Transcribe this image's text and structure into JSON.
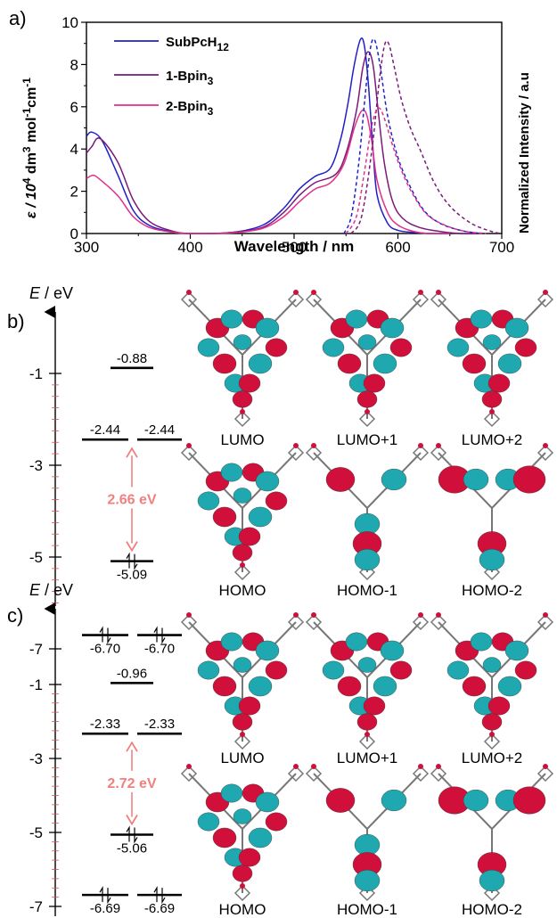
{
  "panel_a": {
    "label": "a)",
    "xlabel": "Wavelength / nm",
    "ylabel_left_pre": "ε / 10",
    "ylabel_left_exp": "4",
    "ylabel_left_mid": " dm",
    "ylabel_left_exp2": "3",
    "ylabel_left_mid2": " mol",
    "ylabel_left_exp3": "-1",
    "ylabel_left_mid3": "cm",
    "ylabel_left_exp4": "-1",
    "ylabel_right": "Normalized Intensity / a.u",
    "legend": [
      {
        "name": "SubPcH",
        "sub": "12",
        "color": "#2020c8"
      },
      {
        "name": "1-Bpin",
        "sub": "3",
        "color": "#7a1a7a"
      },
      {
        "name": "2-Bpin",
        "sub": "3",
        "color": "#e0308a"
      }
    ]
  },
  "chart_data": {
    "type": "line",
    "xlabel": "Wavelength / nm",
    "xlim": [
      300,
      700
    ],
    "ylim": [
      0,
      10
    ],
    "xticks": [
      300,
      400,
      500,
      600,
      700
    ],
    "yticks": [
      0,
      2,
      4,
      6,
      8,
      10
    ],
    "legend_position": "top-left",
    "series": [
      {
        "name": "SubPcH12",
        "kind": "absorption",
        "color": "#2020c8",
        "x": [
          300,
          305,
          315,
          330,
          345,
          360,
          380,
          400,
          440,
          470,
          490,
          505,
          520,
          535,
          545,
          552,
          558,
          564,
          568,
          572,
          576,
          580,
          590,
          600,
          615,
          630,
          650
        ],
        "y": [
          4.6,
          4.8,
          4.4,
          2.8,
          1.1,
          0.4,
          0.1,
          0.0,
          0.05,
          0.4,
          1.2,
          2.1,
          2.7,
          3.1,
          4.5,
          6.2,
          8.0,
          9.2,
          8.8,
          6.8,
          4.0,
          1.8,
          0.5,
          0.15,
          0.05,
          0.0,
          0.0
        ]
      },
      {
        "name": "1-Bpin3",
        "kind": "absorption",
        "color": "#7a1a7a",
        "x": [
          300,
          305,
          313,
          330,
          345,
          360,
          380,
          400,
          440,
          470,
          490,
          505,
          520,
          540,
          550,
          560,
          566,
          571,
          576,
          581,
          587,
          595,
          605,
          620,
          640,
          660,
          680
        ],
        "y": [
          3.8,
          4.1,
          4.5,
          3.4,
          1.6,
          0.6,
          0.15,
          0.0,
          0.05,
          0.3,
          1.0,
          1.8,
          2.4,
          2.8,
          3.8,
          5.8,
          7.8,
          8.6,
          8.0,
          5.8,
          3.3,
          1.5,
          0.7,
          0.3,
          0.1,
          0.0,
          0.0
        ]
      },
      {
        "name": "2-Bpin3",
        "kind": "absorption",
        "color": "#e0308a",
        "x": [
          300,
          306,
          312,
          330,
          345,
          360,
          380,
          400,
          440,
          470,
          490,
          505,
          520,
          535,
          548,
          558,
          565,
          570,
          575,
          580,
          590,
          600,
          615,
          630,
          650
        ],
        "y": [
          2.6,
          2.75,
          2.6,
          1.8,
          0.8,
          0.3,
          0.08,
          0.0,
          0.03,
          0.25,
          0.8,
          1.5,
          2.1,
          2.4,
          3.3,
          5.0,
          5.8,
          5.6,
          4.3,
          2.5,
          1.0,
          0.4,
          0.1,
          0.0,
          0.0
        ]
      },
      {
        "name": "SubPcH12",
        "kind": "emission",
        "color": "#2020c8",
        "x": [
          548,
          555,
          562,
          568,
          573,
          577,
          582,
          590,
          600,
          612,
          625,
          640,
          660,
          680
        ],
        "y": [
          0.0,
          0.8,
          3.2,
          6.3,
          8.6,
          9.2,
          8.2,
          5.6,
          3.6,
          2.2,
          1.1,
          0.5,
          0.15,
          0.0
        ]
      },
      {
        "name": "1-Bpin3",
        "kind": "emission",
        "color": "#7a1a7a",
        "x": [
          555,
          565,
          575,
          582,
          587,
          591,
          596,
          603,
          612,
          622,
          635,
          650,
          670,
          690,
          700
        ],
        "y": [
          0.0,
          0.8,
          4.0,
          7.2,
          8.9,
          9.0,
          8.0,
          6.4,
          5.0,
          3.9,
          2.4,
          1.3,
          0.5,
          0.1,
          0.0
        ]
      },
      {
        "name": "2-Bpin3",
        "kind": "emission",
        "color": "#e0308a",
        "x": [
          550,
          560,
          568,
          574,
          579,
          583,
          588,
          596,
          605,
          615,
          628,
          645,
          665,
          685
        ],
        "y": [
          0.0,
          0.8,
          3.0,
          4.9,
          5.8,
          5.9,
          5.3,
          4.0,
          2.8,
          1.8,
          0.9,
          0.4,
          0.1,
          0.0
        ]
      }
    ]
  },
  "panel_b": {
    "label": "b)",
    "axis_title_E": "E",
    "axis_title_unit": " / eV",
    "ticks": [
      "-1",
      "-3",
      "-5",
      "-7"
    ],
    "levels": {
      "lumo2": "-0.88",
      "lumo_left": "-2.44",
      "lumo_right": "-2.44",
      "gap": "2.66 eV",
      "homo": "-5.09",
      "homo_deg_left": "-6.70",
      "homo_deg_right": "-6.70"
    },
    "orbitals": [
      "LUMO",
      "LUMO+1",
      "LUMO+2",
      "HOMO",
      "HOMO-1",
      "HOMO-2"
    ]
  },
  "panel_c": {
    "label": "c)",
    "axis_title_E": "E",
    "axis_title_unit": " / eV",
    "ticks": [
      "-1",
      "-3",
      "-5",
      "-7"
    ],
    "levels": {
      "lumo2": "-0.96",
      "lumo_left": "-2.33",
      "lumo_right": "-2.33",
      "gap": "2.72 eV",
      "homo": "-5.06",
      "homo_deg_left": "-6.69",
      "homo_deg_right": "-6.69"
    },
    "orbitals": [
      "LUMO",
      "LUMO+1",
      "LUMO+2",
      "HOMO",
      "HOMO-1",
      "HOMO-2"
    ]
  },
  "colors": {
    "lobe_red": "#d0103a",
    "lobe_cyan": "#20a8b0",
    "gap_arrow": "#f08080",
    "frame": "#000000"
  }
}
